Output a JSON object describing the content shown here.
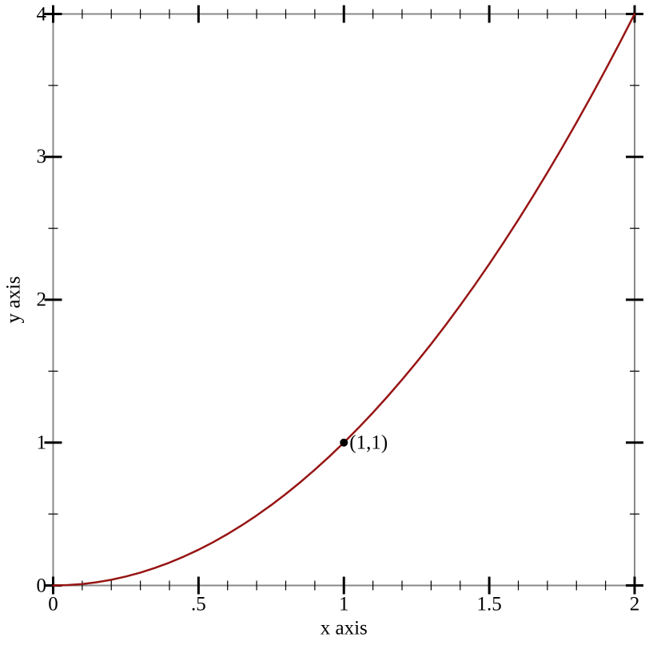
{
  "chart_data": {
    "type": "line",
    "title": "",
    "xlabel": "x axis",
    "ylabel": "y axis",
    "xlim": [
      0,
      2
    ],
    "ylim": [
      0,
      4
    ],
    "grid": false,
    "legend": "none",
    "x_major_ticks": {
      "values": [
        0,
        0.5,
        1,
        1.5,
        2
      ],
      "labels": [
        "0",
        ".5",
        "1",
        "1.5",
        "2"
      ]
    },
    "x_minor_tick_step": 0.1,
    "y_major_ticks": {
      "values": [
        0,
        1,
        2,
        3,
        4
      ],
      "labels": [
        "0",
        "1",
        "2",
        "3",
        "4"
      ]
    },
    "y_minor_tick_step": 0.5,
    "series": [
      {
        "color": "#971414",
        "x": [
          0,
          0.05,
          0.1,
          0.15,
          0.2,
          0.25,
          0.3,
          0.35,
          0.4,
          0.45,
          0.5,
          0.55,
          0.6,
          0.65,
          0.7,
          0.75,
          0.8,
          0.85,
          0.9,
          0.95,
          1,
          1.05,
          1.1,
          1.15,
          1.2,
          1.25,
          1.3,
          1.35,
          1.4,
          1.45,
          1.5,
          1.55,
          1.6,
          1.65,
          1.7,
          1.75,
          1.8,
          1.85,
          1.9,
          1.95,
          2
        ],
        "y": [
          0,
          0.0025,
          0.01,
          0.0225,
          0.04,
          0.0625,
          0.09,
          0.1225,
          0.16,
          0.2025,
          0.25,
          0.3025,
          0.36,
          0.4225,
          0.49,
          0.5625,
          0.64,
          0.7225,
          0.81,
          0.9025,
          1,
          1.1025,
          1.21,
          1.3225,
          1.44,
          1.5625,
          1.69,
          1.8225,
          1.96,
          2.1025,
          2.25,
          2.4025,
          2.56,
          2.7225,
          2.89,
          3.0625,
          3.24,
          3.4225,
          3.61,
          3.8025,
          4
        ]
      }
    ],
    "annotations": [
      {
        "x": 1,
        "y": 1,
        "marker": "filled-circle",
        "marker_color": "#000000",
        "label": "(1,1)"
      }
    ],
    "colors": {
      "curve": "#971414",
      "axis_frame": "#888888",
      "ticks": "#000000",
      "text": "#000000",
      "background": "#ffffff"
    }
  }
}
